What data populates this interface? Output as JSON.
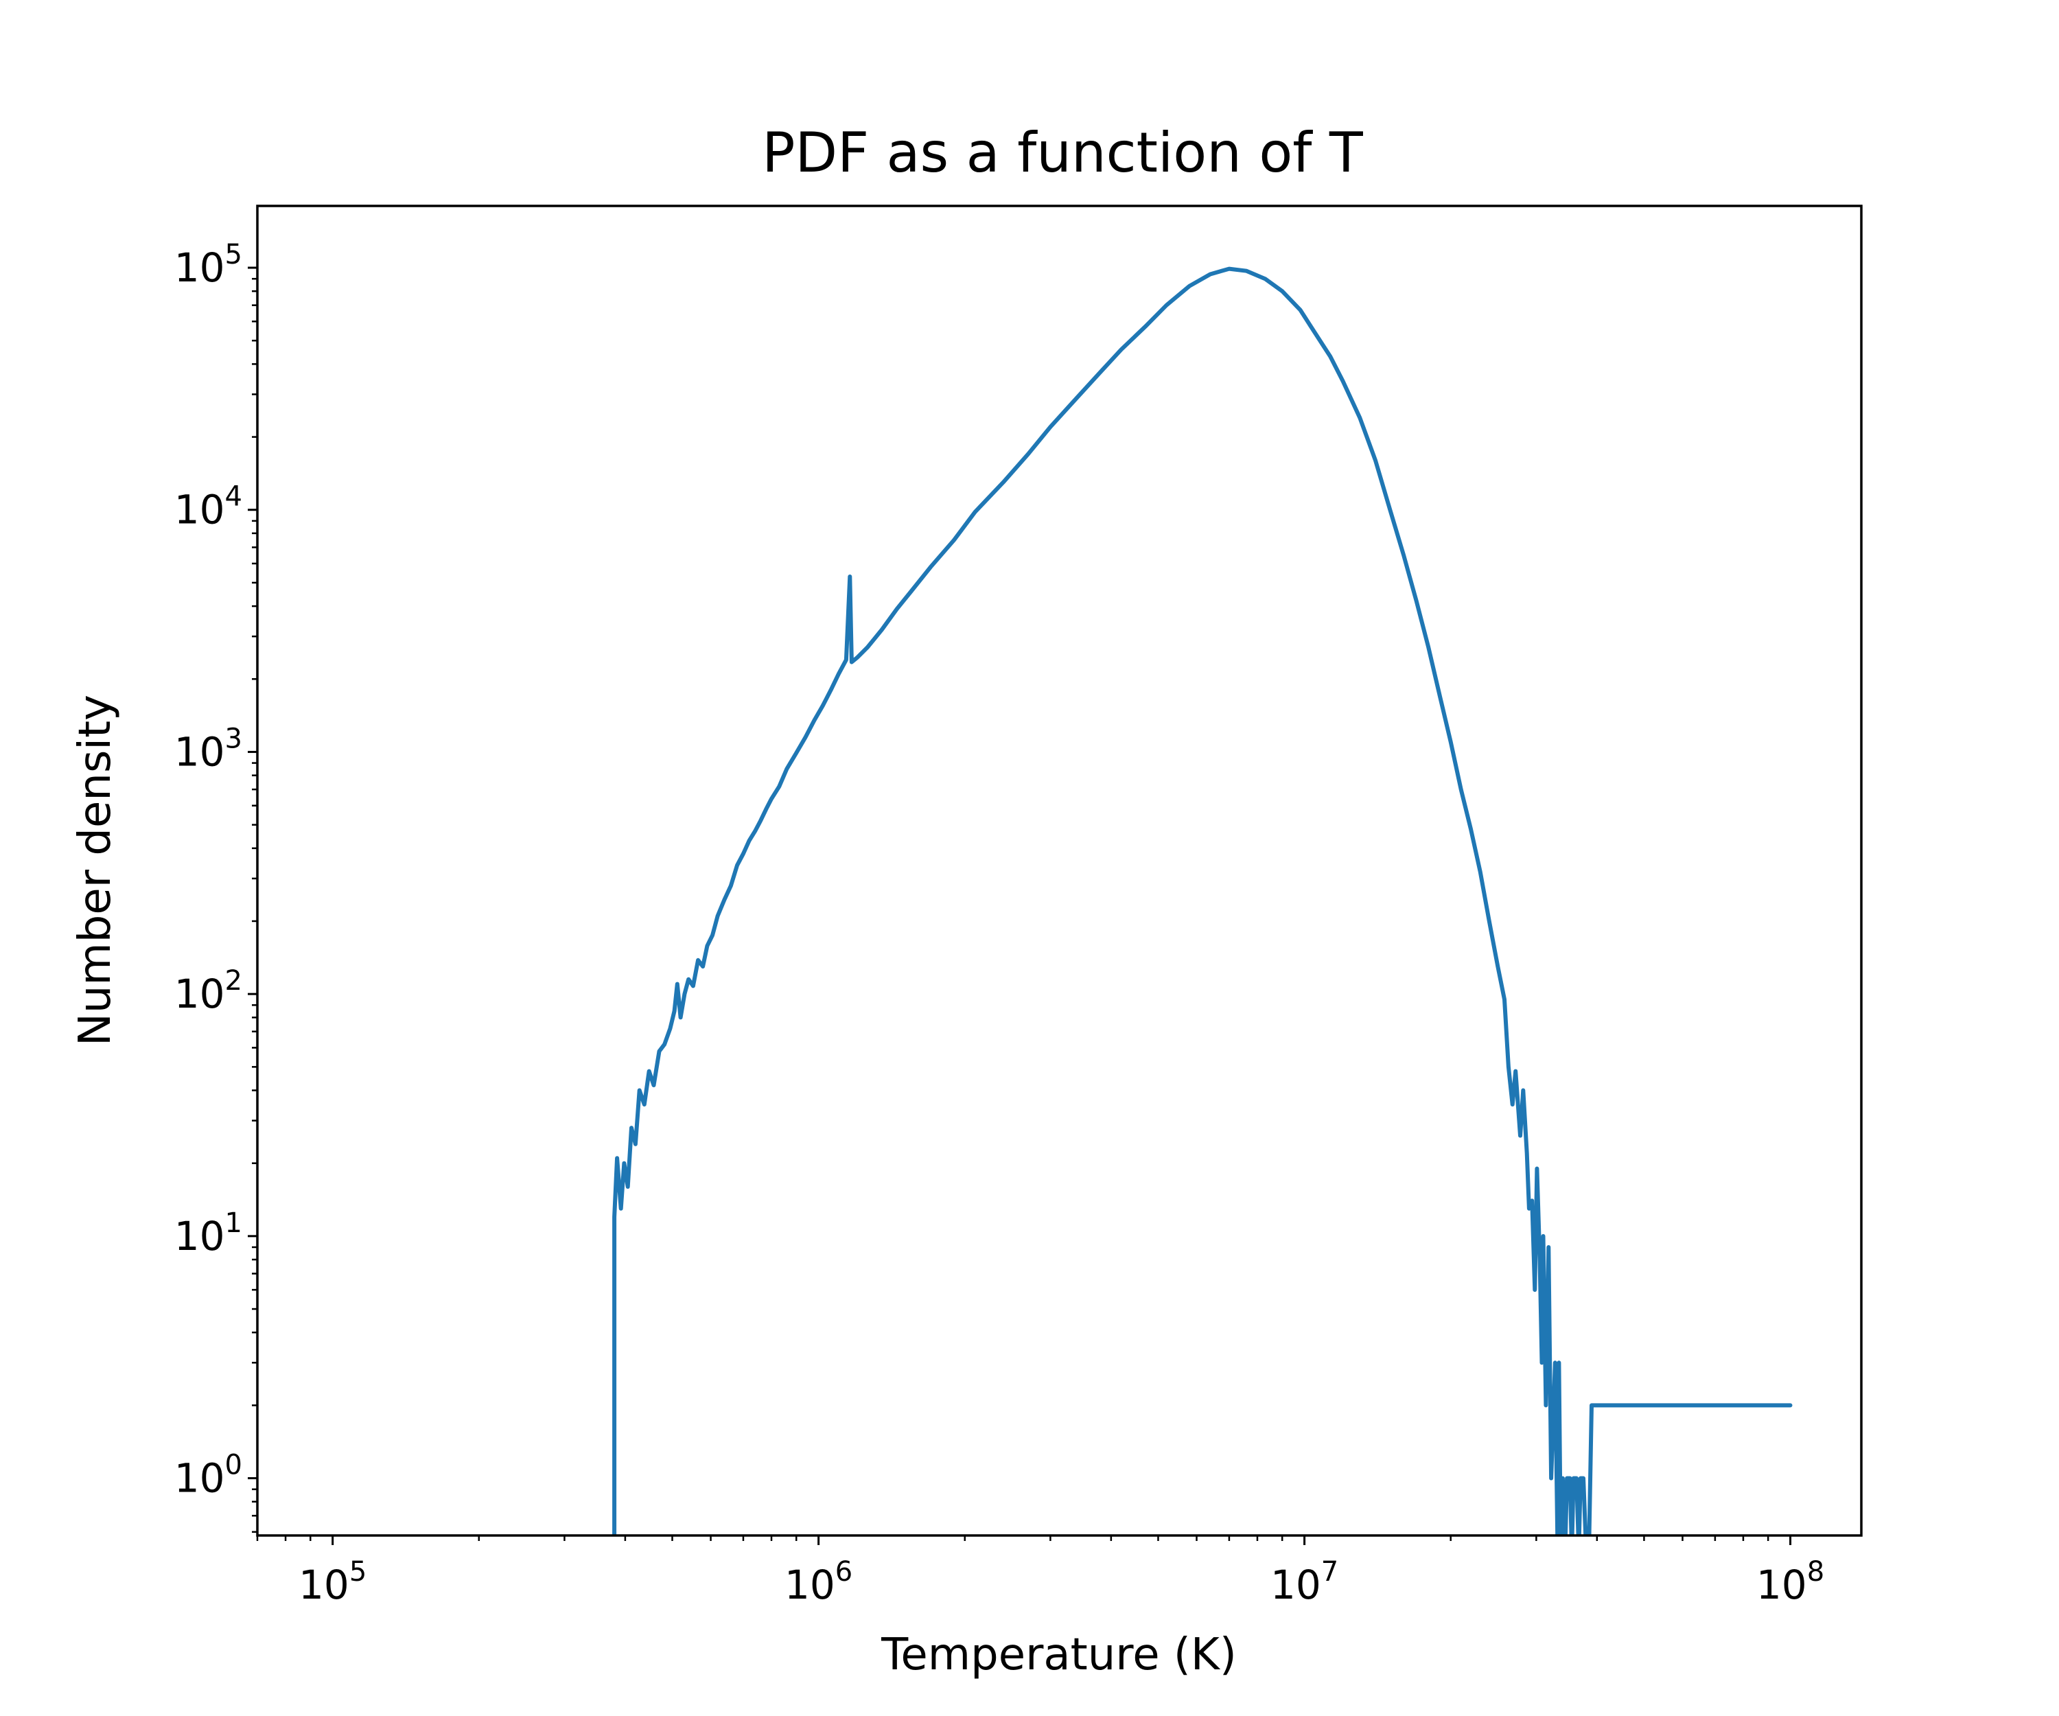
{
  "chart_data": {
    "type": "line",
    "title": "PDF as a function of T",
    "xlabel": "Temperature (K)",
    "ylabel": "Number density",
    "xscale": "log",
    "yscale": "log",
    "xlim": [
      70000,
      140000000
    ],
    "ylim": [
      0.58,
      180000
    ],
    "grid": false,
    "legend": "none",
    "x_tick_labels": [
      {
        "value": 100000,
        "base": "10",
        "exp": "5"
      },
      {
        "value": 1000000,
        "base": "10",
        "exp": "6"
      },
      {
        "value": 10000000,
        "base": "10",
        "exp": "7"
      },
      {
        "value": 100000000,
        "base": "10",
        "exp": "8"
      }
    ],
    "y_tick_labels": [
      {
        "value": 1,
        "base": "10",
        "exp": "0"
      },
      {
        "value": 10,
        "base": "10",
        "exp": "1"
      },
      {
        "value": 100,
        "base": "10",
        "exp": "2"
      },
      {
        "value": 1000,
        "base": "10",
        "exp": "3"
      },
      {
        "value": 10000,
        "base": "10",
        "exp": "4"
      },
      {
        "value": 100000,
        "base": "10",
        "exp": "5"
      }
    ],
    "series": [
      {
        "color": "#1f77b4",
        "points": [
          [
            380000,
            0.5
          ],
          [
            380000,
            12
          ],
          [
            385000,
            21
          ],
          [
            392000,
            13
          ],
          [
            398000,
            20
          ],
          [
            405000,
            16
          ],
          [
            412000,
            28
          ],
          [
            420000,
            24
          ],
          [
            428000,
            40
          ],
          [
            438000,
            35
          ],
          [
            448000,
            48
          ],
          [
            458000,
            42
          ],
          [
            470000,
            58
          ],
          [
            482000,
            62
          ],
          [
            495000,
            72
          ],
          [
            505000,
            85
          ],
          [
            512000,
            110
          ],
          [
            520000,
            80
          ],
          [
            530000,
            100
          ],
          [
            540000,
            115
          ],
          [
            552000,
            108
          ],
          [
            565000,
            138
          ],
          [
            578000,
            130
          ],
          [
            590000,
            158
          ],
          [
            605000,
            175
          ],
          [
            620000,
            210
          ],
          [
            640000,
            245
          ],
          [
            660000,
            280
          ],
          [
            680000,
            340
          ],
          [
            700000,
            380
          ],
          [
            720000,
            430
          ],
          [
            740000,
            470
          ],
          [
            760000,
            520
          ],
          [
            780000,
            580
          ],
          [
            800000,
            640
          ],
          [
            830000,
            720
          ],
          [
            860000,
            850
          ],
          [
            900000,
            990
          ],
          [
            940000,
            1150
          ],
          [
            980000,
            1350
          ],
          [
            1020000,
            1550
          ],
          [
            1060000,
            1800
          ],
          [
            1100000,
            2100
          ],
          [
            1140000,
            2400
          ],
          [
            1160000,
            5300
          ],
          [
            1170000,
            2350
          ],
          [
            1200000,
            2450
          ],
          [
            1260000,
            2700
          ],
          [
            1350000,
            3200
          ],
          [
            1450000,
            3900
          ],
          [
            1550000,
            4600
          ],
          [
            1700000,
            5800
          ],
          [
            1900000,
            7500
          ],
          [
            2100000,
            9800
          ],
          [
            2400000,
            13000
          ],
          [
            2700000,
            17000
          ],
          [
            3000000,
            22000
          ],
          [
            3400000,
            29000
          ],
          [
            3800000,
            37000
          ],
          [
            4200000,
            46000
          ],
          [
            4700000,
            57000
          ],
          [
            5200000,
            70000
          ],
          [
            5800000,
            84000
          ],
          [
            6400000,
            94000
          ],
          [
            7000000,
            99000
          ],
          [
            7600000,
            97000
          ],
          [
            8300000,
            90000
          ],
          [
            9000000,
            80000
          ],
          [
            9800000,
            67000
          ],
          [
            10500000,
            54000
          ],
          [
            11300000,
            43000
          ],
          [
            12000000,
            34000
          ],
          [
            13000000,
            24000
          ],
          [
            14000000,
            16000
          ],
          [
            15000000,
            10000
          ],
          [
            16000000,
            6500
          ],
          [
            17000000,
            4200
          ],
          [
            18000000,
            2700
          ],
          [
            19000000,
            1700
          ],
          [
            20000000,
            1100
          ],
          [
            21000000,
            700
          ],
          [
            22000000,
            480
          ],
          [
            23000000,
            320
          ],
          [
            24000000,
            200
          ],
          [
            25000000,
            130
          ],
          [
            25800000,
            95
          ],
          [
            26300000,
            50
          ],
          [
            26800000,
            35
          ],
          [
            27200000,
            48
          ],
          [
            27800000,
            26
          ],
          [
            28200000,
            40
          ],
          [
            28700000,
            22
          ],
          [
            29000000,
            13
          ],
          [
            29400000,
            14
          ],
          [
            29800000,
            6
          ],
          [
            30100000,
            19
          ],
          [
            30500000,
            8
          ],
          [
            30800000,
            3
          ],
          [
            31000000,
            10
          ],
          [
            31400000,
            2
          ],
          [
            31800000,
            9
          ],
          [
            32200000,
            1
          ],
          [
            32800000,
            3
          ],
          [
            33200000,
            0.5
          ],
          [
            33400000,
            3
          ],
          [
            33700000,
            0.5
          ],
          [
            34000000,
            1
          ],
          [
            34400000,
            0.5
          ],
          [
            34700000,
            1
          ],
          [
            35200000,
            1
          ],
          [
            35500000,
            0.5
          ],
          [
            35800000,
            1
          ],
          [
            36300000,
            1
          ],
          [
            36700000,
            0.5
          ],
          [
            37000000,
            1
          ],
          [
            37500000,
            1
          ],
          [
            38000000,
            0.5
          ],
          [
            38500000,
            0.5
          ],
          [
            39000000,
            2
          ],
          [
            100000000,
            2
          ]
        ]
      }
    ]
  }
}
